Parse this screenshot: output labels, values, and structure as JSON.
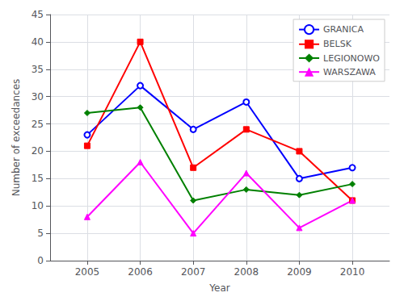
{
  "chart_data": {
    "type": "line",
    "xlabel": "Year",
    "ylabel": "Number of exceedances",
    "x": [
      2005,
      2006,
      2007,
      2008,
      2009,
      2010
    ],
    "series": [
      {
        "name": "GRANICA",
        "color": "#0000FF",
        "marker": "circle",
        "values": [
          23,
          32,
          24,
          29,
          15,
          17
        ]
      },
      {
        "name": "BELSK",
        "color": "#FF0000",
        "marker": "square",
        "values": [
          21,
          40,
          17,
          24,
          20,
          11
        ]
      },
      {
        "name": "LEGIONOWO",
        "color": "#008000",
        "marker": "diamond",
        "values": [
          27,
          28,
          11,
          13,
          12,
          14
        ]
      },
      {
        "name": "WARSZAWA",
        "color": "#FF00FF",
        "marker": "triangle",
        "values": [
          8,
          18,
          5,
          16,
          6,
          11
        ]
      }
    ],
    "xlim": [
      2004.3,
      2010.7
    ],
    "xticks": [
      2005,
      2006,
      2007,
      2008,
      2009,
      2010
    ],
    "ylim": [
      0,
      45
    ],
    "yticks": [
      0,
      5,
      10,
      15,
      20,
      25,
      30,
      35,
      40,
      45
    ],
    "grid": true,
    "legend": "upper right"
  }
}
